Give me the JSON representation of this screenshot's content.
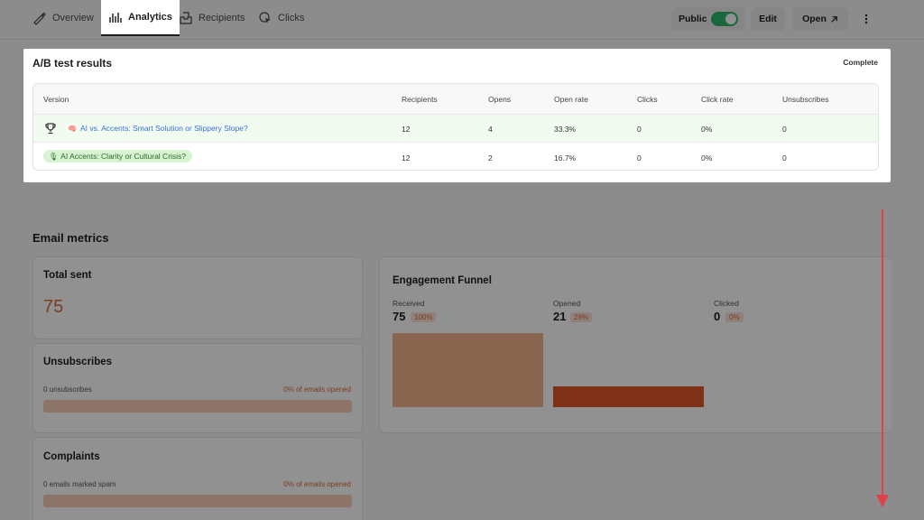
{
  "tabs": [
    {
      "label": "Overview",
      "icon": "pen-icon"
    },
    {
      "label": "Analytics",
      "icon": "bar-chart-icon",
      "active": true
    },
    {
      "label": "Recipients",
      "icon": "inbox-icon"
    },
    {
      "label": "Clicks",
      "icon": "cursor-click-icon"
    }
  ],
  "header_actions": {
    "public_label": "Public",
    "public_on": true,
    "edit_label": "Edit",
    "open_label": "Open",
    "more_icon": "kebab-icon"
  },
  "ab_test": {
    "title": "A/B test results",
    "status": "Complete",
    "columns": [
      "Version",
      "Recipients",
      "Opens",
      "Open rate",
      "Clicks",
      "Click rate",
      "Unsubscribes"
    ],
    "rows": [
      {
        "version": "AI vs. Accents: Smart Solution or Slippery Slope?",
        "emoji": "🧠",
        "winner": true,
        "recipients": "12",
        "opens": "4",
        "open_rate": "33.3%",
        "clicks": "0",
        "click_rate": "0%",
        "unsubscribes": "0"
      },
      {
        "version": "AI Accents: Clarity or Cultural Crisis?",
        "emoji": "🎙",
        "winner": false,
        "recipients": "12",
        "opens": "2",
        "open_rate": "16.7%",
        "clicks": "0",
        "click_rate": "0%",
        "unsubscribes": "0"
      }
    ]
  },
  "email_metrics": {
    "title": "Email metrics",
    "total_sent": {
      "label": "Total sent",
      "value": "75"
    },
    "unsubscribes": {
      "label": "Unsubscribes",
      "left": "0 unsubscribes",
      "right": "0% of emails opened",
      "fraction": 0
    },
    "complaints": {
      "label": "Complaints",
      "left": "0 emails marked spam",
      "right": "0% of emails opened",
      "fraction": 0
    }
  },
  "funnel": {
    "title": "Engagement Funnel",
    "stages": [
      {
        "label": "Received",
        "value": "75",
        "pct": "100%",
        "fraction": 1.0
      },
      {
        "label": "Opened",
        "value": "21",
        "pct": "28%",
        "fraction": 0.28
      },
      {
        "label": "Clicked",
        "value": "0",
        "pct": "0%",
        "fraction": 0
      }
    ]
  },
  "colors": {
    "accent": "#d96a3d",
    "funnel_received": "#f2b48d",
    "funnel_opened": "#e0562a",
    "winner_row": "#f1fbef",
    "toggle_on": "#2fb36b",
    "annotation_arrow": "#e0404a"
  }
}
